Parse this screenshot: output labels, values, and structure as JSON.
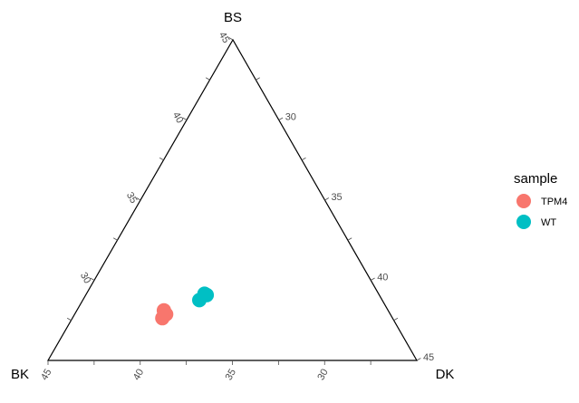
{
  "chart_data": {
    "type": "ternary-scatter",
    "vertices": {
      "top": "BS",
      "left": "BK",
      "right": "DK"
    },
    "axis_range": [
      25,
      45
    ],
    "ticks": {
      "BS": [
        "30",
        "35",
        "40",
        "45"
      ],
      "BK": [
        "30",
        "35",
        "40",
        "45"
      ],
      "DK": [
        "30",
        "35",
        "40",
        "45"
      ]
    },
    "legend": {
      "title": "sample",
      "placement": "right",
      "entries": [
        {
          "name": "TPM4",
          "color": "#F8766D"
        },
        {
          "name": "WT",
          "color": "#00BFC4"
        }
      ]
    },
    "series": [
      {
        "name": "TPM4",
        "color": "#F8766D",
        "points": [
          {
            "BS": 28.9,
            "BK": 40.2,
            "DK": 30.9
          },
          {
            "BS": 28.6,
            "BK": 40.2,
            "DK": 31.2
          },
          {
            "BS": 28.3,
            "BK": 40.6,
            "DK": 31.1
          }
        ]
      },
      {
        "name": "WT",
        "color": "#00BFC4",
        "points": [
          {
            "BS": 30.2,
            "BK": 36.8,
            "DK": 33.0
          },
          {
            "BS": 30.1,
            "BK": 36.7,
            "DK": 33.2
          },
          {
            "BS": 29.7,
            "BK": 37.4,
            "DK": 32.9
          }
        ]
      }
    ]
  }
}
